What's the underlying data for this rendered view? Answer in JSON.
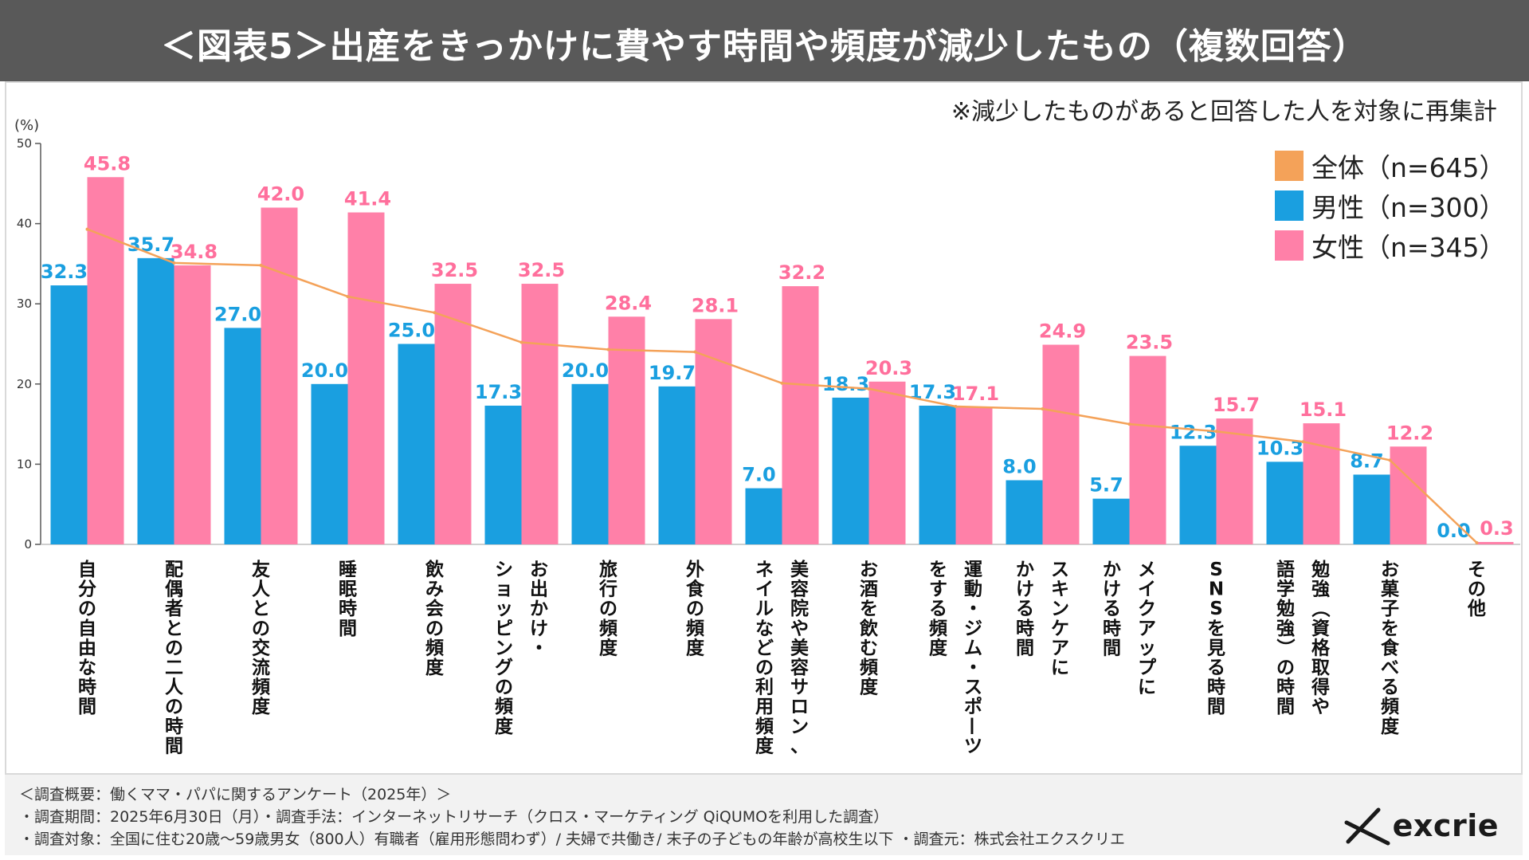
{
  "header": {
    "title": "＜図表5＞出産をきっかけに費やす時間や頻度が減少したもの（複数回答）"
  },
  "note": "※減少したものがあると回答した人を対象に再集計",
  "legend": [
    {
      "label": "全体（n=645）",
      "color": "#f4a259"
    },
    {
      "label": "男性（n=300）",
      "color": "#1a9fe0"
    },
    {
      "label": "女性（n=345）",
      "color": "#ff80a8"
    }
  ],
  "chart_data": {
    "type": "bar",
    "yunit": "(%)",
    "ylim": [
      0,
      50
    ],
    "yticks": [
      "0",
      "10",
      "20",
      "30",
      "40",
      "50"
    ],
    "categories": [
      [
        "自分の自由な時間"
      ],
      [
        "配偶者との二人の時間"
      ],
      [
        "友人との交流頻度"
      ],
      [
        "睡眠時間"
      ],
      [
        "飲み会の頻度"
      ],
      [
        "お出かけ・",
        "ショッピングの頻度"
      ],
      [
        "旅行の頻度"
      ],
      [
        "外食の頻度"
      ],
      [
        "美容院や美容サロン、",
        "ネイルなどの利用頻度"
      ],
      [
        "お酒を飲む頻度"
      ],
      [
        "運動・ジム・スポーツ",
        "をする頻度"
      ],
      [
        "スキンケアに",
        "かける時間"
      ],
      [
        "メイクアップに",
        "かける時間"
      ],
      [
        "SNSを見る時間"
      ],
      [
        "勉強（資格取得や",
        "語学勉強）の時間"
      ],
      [
        "お菓子を食べる頻度"
      ],
      [
        "その他"
      ]
    ],
    "series": [
      {
        "name": "全体（n=645）",
        "kind": "line",
        "color": "#f4a259",
        "values": [
          39.3,
          35.1,
          34.8,
          30.9,
          28.9,
          25.2,
          24.3,
          24.0,
          20.1,
          19.4,
          17.2,
          16.9,
          15.0,
          14.1,
          12.8,
          10.5,
          0.2
        ]
      },
      {
        "name": "男性（n=300）",
        "kind": "bar",
        "color": "#1a9fe0",
        "values": [
          32.3,
          35.7,
          27.0,
          20.0,
          25.0,
          17.3,
          20.0,
          19.7,
          7.0,
          18.3,
          17.3,
          8.0,
          5.7,
          12.3,
          10.3,
          8.7,
          0.0
        ],
        "labels": [
          "32.3",
          "35.7",
          "27.0",
          "20.0",
          "25.0",
          "17.3",
          "20.0",
          "19.7",
          "7.0",
          "18.3",
          "17.3",
          "8.0",
          "5.7",
          "12.3",
          "10.3",
          "8.7",
          "0.0"
        ]
      },
      {
        "name": "女性（n=345）",
        "kind": "bar",
        "color": "#ff80a8",
        "values": [
          45.8,
          34.8,
          42.0,
          41.4,
          32.5,
          32.5,
          28.4,
          28.1,
          32.2,
          20.3,
          17.1,
          24.9,
          23.5,
          15.7,
          15.1,
          12.2,
          0.3
        ],
        "labels": [
          "45.8",
          "34.8",
          "42.0",
          "41.4",
          "32.5",
          "32.5",
          "28.4",
          "28.1",
          "32.2",
          "20.3",
          "17.1",
          "24.9",
          "23.5",
          "15.7",
          "15.1",
          "12.2",
          "0.3"
        ]
      }
    ]
  },
  "footer": {
    "line1": "＜調査概要：働くママ・パパに関するアンケート（2025年）＞",
    "line2": "・調査期間：2025年6月30日（月）・調査手法：インターネットリサーチ（クロス・マーケティング QiQUMOを利用した調査）",
    "line3": "・調査対象：全国に住む20歳～59歳男女（800人）有職者（雇用形態問わず）/ 夫婦で共働き/ 末子の子どもの年齢が高校生以下 ・調査元：株式会社エクスクリエ"
  },
  "logo": {
    "text": "excrie"
  }
}
